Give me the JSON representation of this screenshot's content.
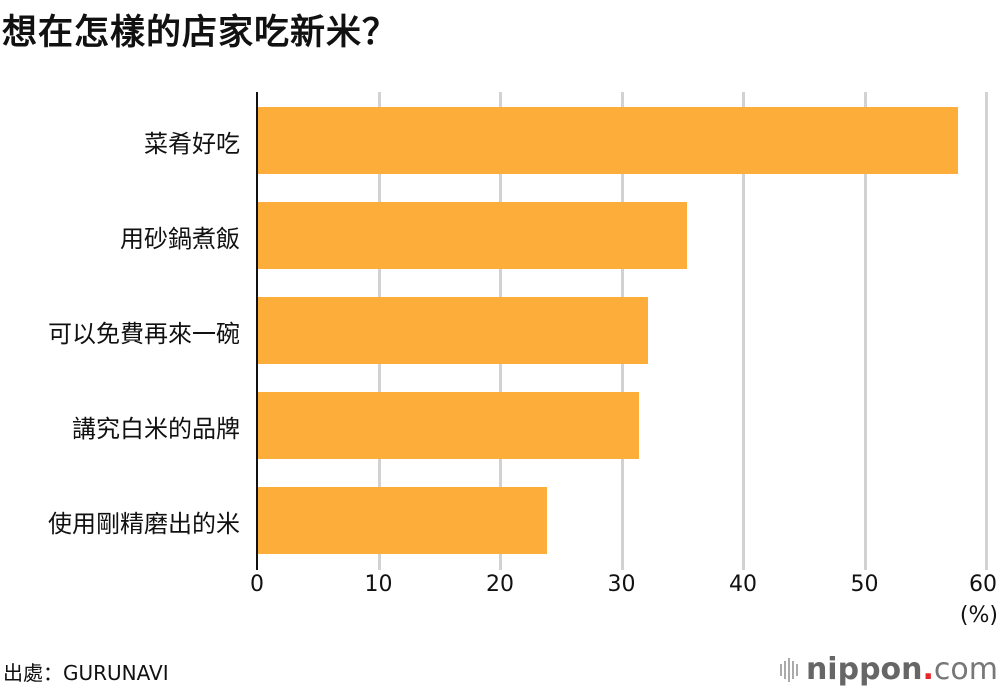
{
  "title": "想在怎樣的店家吃新米？",
  "source": "出處：GURUNAVI",
  "logo": {
    "name": "nippon",
    "dot": ".",
    "tld": "com"
  },
  "colors": {
    "bar": "#fdad39",
    "grid": "#d2d2d2",
    "axis": "#111111"
  },
  "chart_data": {
    "type": "bar",
    "orientation": "horizontal",
    "title": "想在怎樣的店家吃新米？",
    "categories": [
      "菜肴好吃",
      "用砂鍋煮飯",
      "可以免費再來一碗",
      "講究白米的品牌",
      "使用剛精磨出的米"
    ],
    "values": [
      57.7,
      35.4,
      32.2,
      31.4,
      23.9
    ],
    "xlabel": "(%)",
    "ylabel": "",
    "xlim": [
      0,
      60
    ],
    "xticks": [
      "0",
      "10",
      "20",
      "30",
      "40",
      "50",
      "60"
    ],
    "grid": true,
    "legend": null
  }
}
